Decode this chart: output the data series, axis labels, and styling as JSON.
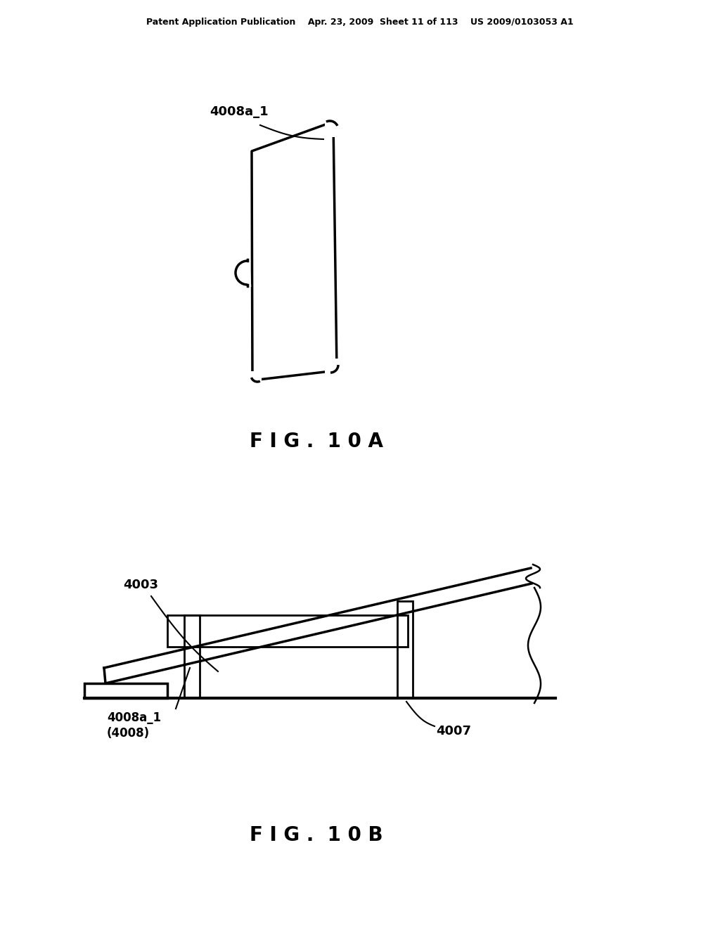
{
  "background_color": "#ffffff",
  "header_text": "Patent Application Publication    Apr. 23, 2009  Sheet 11 of 113    US 2009/0103053 A1",
  "fig10a_label": "F I G .  1 0 A",
  "fig10b_label": "F I G .  1 0 B",
  "label_4008a_1_top": "4008a_1",
  "label_4003": "4003",
  "label_4008a_1_bottom": "4008a_1\n(4008)",
  "label_4007": "4007"
}
